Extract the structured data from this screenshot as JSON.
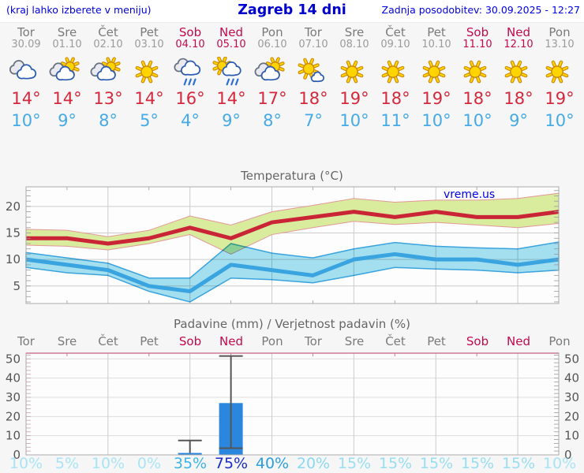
{
  "header": {
    "left_note": "(kraj lahko izberete v meniju)",
    "title": "Zagreb 14 dni",
    "updated": "Zadnja posodobitev: 30.09.2025 - 12:27"
  },
  "units": {
    "degree": "°",
    "percent": "%"
  },
  "days": [
    {
      "name": "Tor",
      "date": "30.09",
      "weekend": false,
      "icon": "cloudy",
      "tmax": 14,
      "tmin": 10,
      "precip_prob": 10,
      "prob_color": "#a8e4f5"
    },
    {
      "name": "Sre",
      "date": "01.10",
      "weekend": false,
      "icon": "sun-cloud",
      "tmax": 14,
      "tmin": 9,
      "precip_prob": 5,
      "prob_color": "#a8e4f5"
    },
    {
      "name": "Čet",
      "date": "02.10",
      "weekend": false,
      "icon": "sun-cloud",
      "tmax": 13,
      "tmin": 8,
      "precip_prob": 10,
      "prob_color": "#a8e4f5"
    },
    {
      "name": "Pet",
      "date": "03.10",
      "weekend": false,
      "icon": "sunny",
      "tmax": 14,
      "tmin": 5,
      "precip_prob": 0,
      "prob_color": "#a8e4f5"
    },
    {
      "name": "Sob",
      "date": "04.10",
      "weekend": true,
      "icon": "rain",
      "tmax": 16,
      "tmin": 4,
      "precip_prob": 35,
      "prob_color": "#3cb4e8"
    },
    {
      "name": "Ned",
      "date": "05.10",
      "weekend": true,
      "icon": "sun-rain",
      "tmax": 14,
      "tmin": 9,
      "precip_prob": 75,
      "prob_color": "#1a2ec6"
    },
    {
      "name": "Pon",
      "date": "06.10",
      "weekend": false,
      "icon": "sun-cloud",
      "tmax": 17,
      "tmin": 8,
      "precip_prob": 40,
      "prob_color": "#2d9fdf"
    },
    {
      "name": "Tor",
      "date": "07.10",
      "weekend": false,
      "icon": "sun-small-cloud",
      "tmax": 18,
      "tmin": 7,
      "precip_prob": 20,
      "prob_color": "#8ad9f1"
    },
    {
      "name": "Sre",
      "date": "08.10",
      "weekend": false,
      "icon": "sunny",
      "tmax": 19,
      "tmin": 10,
      "precip_prob": 15,
      "prob_color": "#97def3"
    },
    {
      "name": "Čet",
      "date": "09.10",
      "weekend": false,
      "icon": "sunny",
      "tmax": 18,
      "tmin": 11,
      "precip_prob": 15,
      "prob_color": "#97def3"
    },
    {
      "name": "Pet",
      "date": "10.10",
      "weekend": false,
      "icon": "sunny",
      "tmax": 19,
      "tmin": 10,
      "precip_prob": 15,
      "prob_color": "#97def3"
    },
    {
      "name": "Sob",
      "date": "11.10",
      "weekend": true,
      "icon": "sunny",
      "tmax": 18,
      "tmin": 10,
      "precip_prob": 15,
      "prob_color": "#97def3"
    },
    {
      "name": "Ned",
      "date": "12.10",
      "weekend": true,
      "icon": "sunny",
      "tmax": 18,
      "tmin": 9,
      "precip_prob": 15,
      "prob_color": "#97def3"
    },
    {
      "name": "Pon",
      "date": "13.10",
      "weekend": false,
      "icon": "sunny",
      "tmax": 19,
      "tmin": 10,
      "precip_prob": 10,
      "prob_color": "#a8e4f5"
    }
  ],
  "chart_data": [
    {
      "type": "area",
      "title": "Temperatura (°C)",
      "watermark": "vreme.us",
      "categories": [
        "Tor",
        "Sre",
        "Čet",
        "Pet",
        "Sob",
        "Ned",
        "Pon",
        "Tor",
        "Sre",
        "Čet",
        "Pet",
        "Sob",
        "Ned",
        "Pon"
      ],
      "ylim": [
        1.7,
        23.7
      ],
      "yticks": [
        5,
        10,
        15,
        20
      ],
      "grid": true,
      "series": [
        {
          "name": "tmax",
          "values": [
            14,
            14,
            13,
            14,
            16,
            14,
            17,
            18,
            19,
            18,
            19,
            18,
            18,
            19
          ]
        },
        {
          "name": "tmax_upper",
          "values": [
            15.7,
            15.5,
            14.3,
            15.5,
            18.2,
            16.5,
            19,
            20.2,
            21.5,
            20.8,
            21.2,
            21.2,
            21.5,
            22.5
          ]
        },
        {
          "name": "tmax_lower",
          "values": [
            12.7,
            12.5,
            11.8,
            13,
            14.7,
            11,
            14.7,
            16,
            17.2,
            16.6,
            17,
            16.5,
            16,
            16.8
          ]
        },
        {
          "name": "tmin",
          "values": [
            10,
            9,
            8,
            5,
            4,
            9,
            8,
            7,
            10,
            11,
            10,
            10,
            9,
            10
          ]
        },
        {
          "name": "tmin_upper",
          "values": [
            11.3,
            10.3,
            9.3,
            6.5,
            6.5,
            13,
            11.2,
            10.3,
            12,
            13.2,
            12.5,
            12.2,
            12,
            13.3
          ]
        },
        {
          "name": "tmin_lower",
          "values": [
            8.5,
            7.5,
            7,
            4,
            2,
            6.5,
            6.2,
            5.6,
            7,
            8.5,
            8.2,
            8,
            7.5,
            8
          ]
        }
      ]
    },
    {
      "type": "bar",
      "title": "Padavine (mm) / Verjetnost padavin (%)",
      "categories": [
        "Tor",
        "Sre",
        "Čet",
        "Pet",
        "Sob",
        "Ned",
        "Pon",
        "Tor",
        "Sre",
        "Čet",
        "Pet",
        "Sob",
        "Ned",
        "Pon"
      ],
      "ylim": [
        0,
        53
      ],
      "yticks": [
        0,
        10,
        20,
        30,
        40,
        50
      ],
      "grid": true,
      "bars": [
        {
          "day_index": 4,
          "value": 1,
          "whisker_low": 1,
          "whisker_high": 7.5,
          "low_cap": false
        },
        {
          "day_index": 5,
          "value": 27,
          "whisker_low": 3.5,
          "whisker_high": 51.5,
          "low_cap": true
        }
      ],
      "probabilities": [
        10,
        5,
        10,
        0,
        35,
        75,
        40,
        20,
        15,
        15,
        15,
        15,
        15,
        10
      ]
    }
  ],
  "colors": {
    "header_blue": "#0000dd",
    "weekday": "#7a7a7a",
    "date": "#9b9b9b",
    "weekend": "#c00a4c",
    "tmax_text": "#d5283c",
    "tmin_text": "#45aae5",
    "red_line": "#c92537",
    "green_fill": "#d9eb9d",
    "green_edge": "#e39898",
    "blue_line": "#3aa4e0",
    "cyan_fill": "#a5e1f2",
    "grid": "#cccccc",
    "border": "#aaaaaa",
    "tick": "#999999",
    "axis_text": "#555555",
    "title_text": "#666666",
    "bar_fill": "#2b87de",
    "whisker": "#555555",
    "pink_border": "#cc7a92",
    "plot_bg": "#fdfdfd"
  }
}
